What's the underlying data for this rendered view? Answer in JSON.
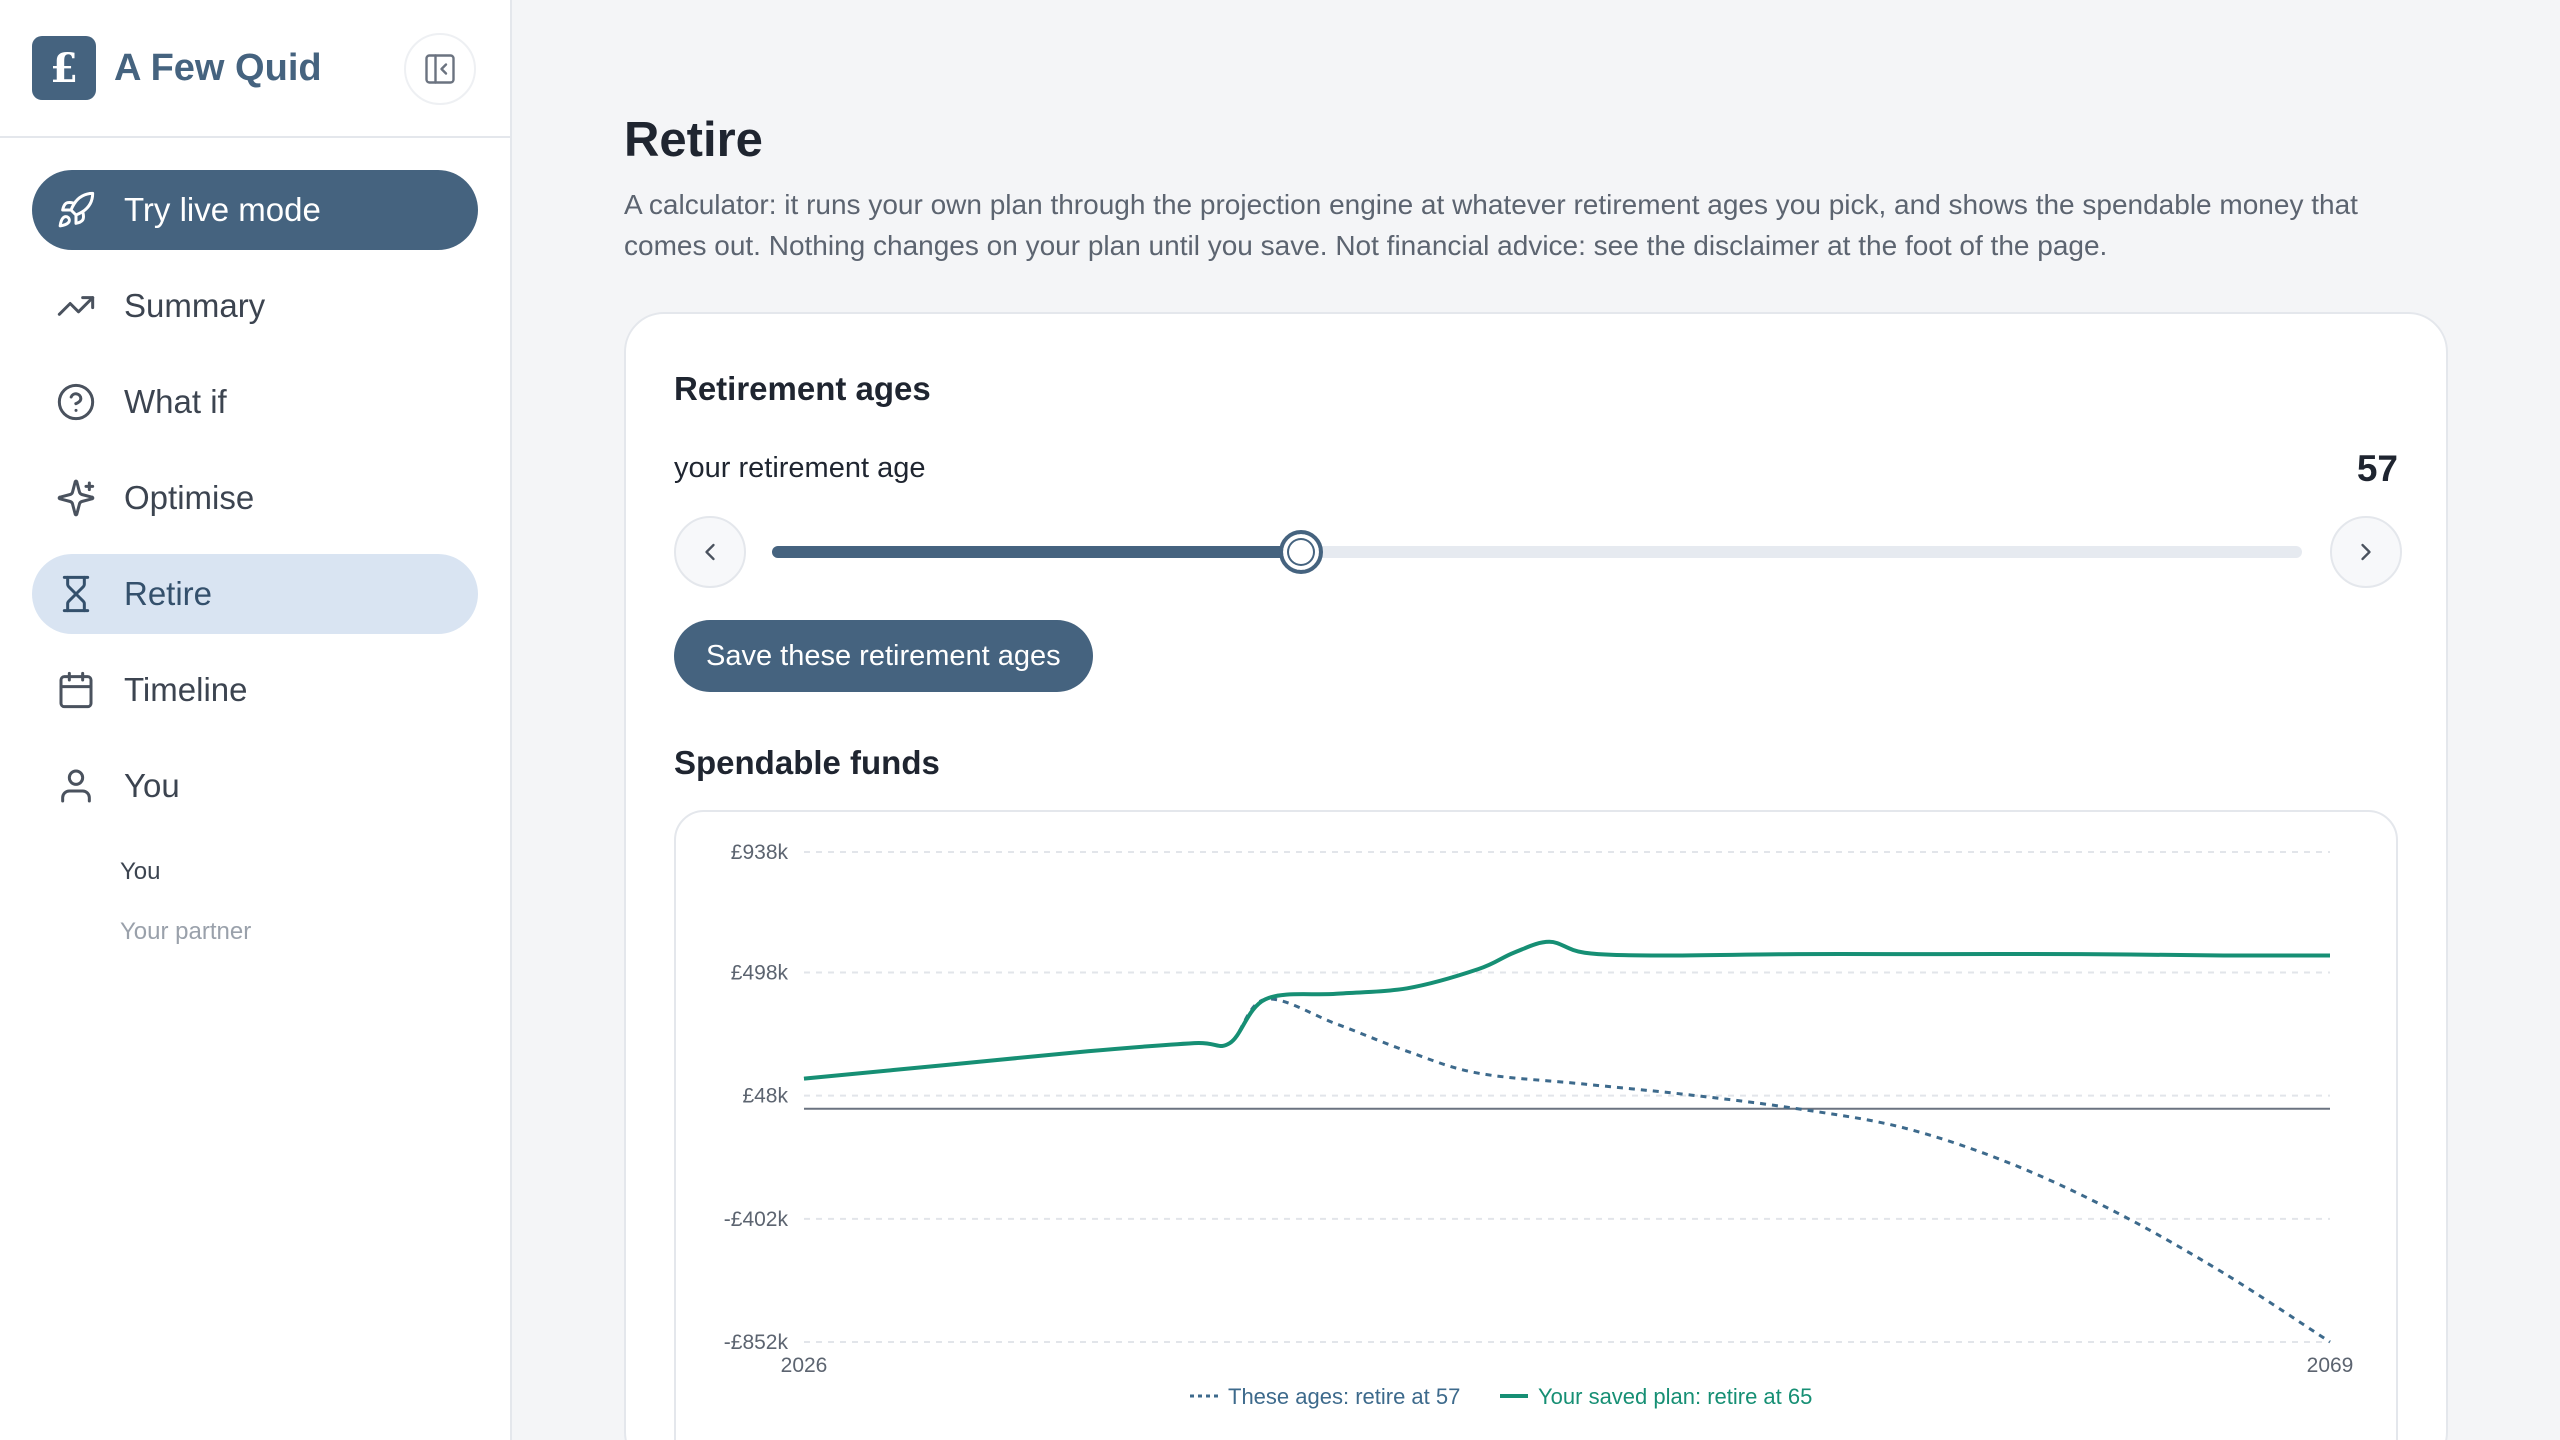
{
  "brand": {
    "logo_glyph": "£",
    "name": "A Few Quid",
    "color": "#45637f"
  },
  "nav": {
    "live": {
      "label": "Try live mode",
      "icon": "rocket-icon"
    },
    "items": [
      {
        "label": "Summary",
        "icon": "trending-up-icon"
      },
      {
        "label": "What if",
        "icon": "help-circle-icon"
      },
      {
        "label": "Optimise",
        "icon": "sparkles-icon"
      },
      {
        "label": "Retire",
        "icon": "hourglass-icon",
        "active": true
      },
      {
        "label": "Timeline",
        "icon": "calendar-icon"
      },
      {
        "label": "You",
        "icon": "user-icon"
      }
    ],
    "sub_items": [
      {
        "label": "You"
      },
      {
        "label": "Your partner"
      }
    ]
  },
  "page": {
    "title": "Retire",
    "description": "A calculator: it runs your own plan through the projection engine at whatever retirement ages you pick, and shows the spendable money that comes out. Nothing changes on your plan until you save. Not financial advice: see the disclaimer at the foot of the page."
  },
  "retirement": {
    "section_title": "Retirement ages",
    "age_label": "your retirement age",
    "age_value": "57",
    "slider_fraction": 0.346,
    "save_label": "Save these retirement ages"
  },
  "spendable": {
    "section_title": "Spendable funds"
  },
  "chart_data": {
    "type": "line",
    "x_range": [
      2026,
      2069
    ],
    "x_tick_labels": [
      "2026",
      "2069"
    ],
    "y_range": [
      -852,
      938
    ],
    "y_unit": "£k",
    "y_tick_labels": [
      "£938k",
      "£498k",
      "£48k",
      "-£402k",
      "-£852k"
    ],
    "y_ticks": [
      938,
      498,
      48,
      -402,
      -852
    ],
    "zero_line": 0,
    "grid": "horizontal dashed",
    "legend_position": "bottom-center",
    "series": [
      {
        "name": "These ages: retire at 57",
        "style": "dotted",
        "color": "#3d6a8c",
        "x": [
          2026,
          2030,
          2034,
          2037,
          2038,
          2039,
          2041,
          2043,
          2045,
          2048,
          2051,
          2054,
          2057,
          2060,
          2063,
          2066,
          2069
        ],
        "y": [
          110,
          160,
          210,
          240,
          240,
          400,
          310,
          210,
          130,
          90,
          50,
          0,
          -70,
          -200,
          -380,
          -600,
          -852
        ]
      },
      {
        "name": "Your saved plan: retire at 65",
        "style": "solid",
        "color": "#168f74",
        "x": [
          2026,
          2030,
          2034,
          2037,
          2038,
          2039,
          2041,
          2043,
          2045,
          2046,
          2047,
          2048,
          2050,
          2054,
          2058,
          2062,
          2066,
          2069
        ],
        "y": [
          110,
          160,
          210,
          240,
          240,
          400,
          420,
          440,
          510,
          570,
          610,
          570,
          560,
          565,
          565,
          565,
          560,
          560
        ]
      }
    ]
  }
}
